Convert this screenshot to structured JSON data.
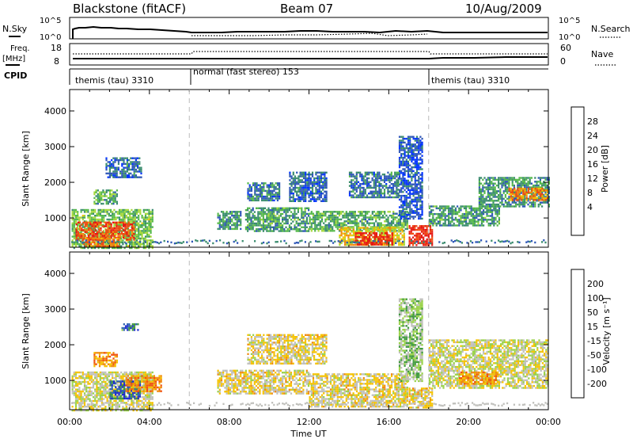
{
  "header": {
    "station": "Blackstone (fitACF)",
    "beam": "Beam 07",
    "date": "10/Aug/2009"
  },
  "status": {
    "nsky_label": "N.Sky",
    "nsearch_label": "N.Search",
    "nsky_ticks": [
      "10^5",
      "10^0"
    ],
    "right_ticks_top": [
      "10^5",
      "10^0"
    ],
    "freq_label": "Freq.",
    "freq_unit": "[MHz]",
    "freq_ticks": [
      "18",
      "8"
    ],
    "nave_label": "Nave",
    "nave_ticks": [
      "60",
      "0"
    ],
    "cpid_label": "CPID",
    "cpid_segments": [
      {
        "label": "themis (tau) 3310",
        "start_hour": 0,
        "end_hour": 6
      },
      {
        "label": "normal (fast stereo) 153",
        "start_hour": 6,
        "end_hour": 18
      },
      {
        "label": "themis (tau) 3310",
        "start_hour": 18,
        "end_hour": 24
      }
    ]
  },
  "chart_data": [
    {
      "type": "heatmap",
      "title": "Power",
      "ylabel": "Slant Range [km]",
      "xlabel": "Time UT",
      "xlim_hours": [
        0,
        24
      ],
      "ylim": [
        180,
        4600
      ],
      "xticks": [
        "00:00",
        "04:00",
        "08:00",
        "12:00",
        "16:00",
        "20:00",
        "00:00"
      ],
      "xtick_hours": [
        0,
        4,
        8,
        12,
        16,
        20,
        24
      ],
      "yticks": [
        1000,
        2000,
        3000,
        4000
      ],
      "colorbar": {
        "label": "Power [dB]",
        "ticks": [
          "28",
          "24",
          "20",
          "16",
          "12",
          "8",
          "4"
        ],
        "colors": [
          "#0033ff",
          "#2f57b7",
          "#3a8c6e",
          "#55b84a",
          "#a6d83a",
          "#f2c400",
          "#f08a10",
          "#ee4c12",
          "#e61812"
        ]
      },
      "regions": [
        {
          "t0": 0.1,
          "t1": 4.2,
          "r0": 180,
          "r1": 1250,
          "level": 0.42
        },
        {
          "t0": 0.3,
          "t1": 3.2,
          "r0": 380,
          "r1": 900,
          "level": 0.85
        },
        {
          "t0": 0.6,
          "t1": 2.5,
          "r0": 230,
          "r1": 450,
          "level": 0.75
        },
        {
          "t0": 1.2,
          "t1": 2.4,
          "r0": 1400,
          "r1": 1800,
          "level": 0.35
        },
        {
          "t0": 1.8,
          "t1": 3.6,
          "r0": 2150,
          "r1": 2700,
          "level": 0.2
        },
        {
          "t0": 7.4,
          "t1": 8.6,
          "r0": 700,
          "r1": 1200,
          "level": 0.3
        },
        {
          "t0": 8.8,
          "t1": 12.0,
          "r0": 650,
          "r1": 1300,
          "level": 0.32
        },
        {
          "t0": 8.9,
          "t1": 10.5,
          "r0": 1500,
          "r1": 2000,
          "level": 0.22
        },
        {
          "t0": 11.0,
          "t1": 12.9,
          "r0": 1500,
          "r1": 2300,
          "level": 0.2
        },
        {
          "t0": 12.0,
          "t1": 16.9,
          "r0": 650,
          "r1": 1200,
          "level": 0.35
        },
        {
          "t0": 13.5,
          "t1": 16.8,
          "r0": 250,
          "r1": 750,
          "level": 0.6
        },
        {
          "t0": 14.3,
          "t1": 16.2,
          "r0": 250,
          "r1": 600,
          "level": 0.95
        },
        {
          "t0": 17.0,
          "t1": 18.2,
          "r0": 250,
          "r1": 800,
          "level": 0.92
        },
        {
          "t0": 16.5,
          "t1": 17.7,
          "r0": 1000,
          "r1": 3300,
          "level": 0.15
        },
        {
          "t0": 14.0,
          "t1": 16.5,
          "r0": 1600,
          "r1": 2300,
          "level": 0.22
        },
        {
          "t0": 18.0,
          "t1": 21.5,
          "r0": 800,
          "r1": 1350,
          "level": 0.32
        },
        {
          "t0": 20.5,
          "t1": 24.0,
          "r0": 1350,
          "r1": 2150,
          "level": 0.3
        },
        {
          "t0": 22.0,
          "t1": 24.0,
          "r0": 1500,
          "r1": 1850,
          "level": 0.72
        }
      ]
    },
    {
      "type": "heatmap",
      "title": "Velocity",
      "ylabel": "Slant Range [km]",
      "xlabel": "Time UT",
      "xlim_hours": [
        0,
        24
      ],
      "ylim": [
        180,
        4600
      ],
      "xticks": [
        "00:00",
        "04:00",
        "08:00",
        "12:00",
        "16:00",
        "20:00",
        "00:00"
      ],
      "xtick_hours": [
        0,
        4,
        8,
        12,
        16,
        20,
        24
      ],
      "yticks": [
        1000,
        2000,
        3000,
        4000
      ],
      "colorbar": {
        "label": "Velocity [m s⁻¹]",
        "ticks": [
          "200",
          "100",
          "50",
          "15",
          "-15",
          "-50",
          "-100",
          "-200"
        ],
        "colors": [
          "#e01010",
          "#f05010",
          "#f08a10",
          "#f5c200",
          "#c0c0bc",
          "#9ad24a",
          "#3f9a3e",
          "#2f63b0",
          "#1e2ad0"
        ]
      },
      "regions": [
        {
          "t0": 0.1,
          "t1": 4.2,
          "r0": 180,
          "r1": 1250,
          "level": 0.5
        },
        {
          "t0": 2.0,
          "t1": 3.5,
          "r0": 500,
          "r1": 1000,
          "level": 0.85
        },
        {
          "t0": 2.8,
          "t1": 4.6,
          "r0": 700,
          "r1": 1150,
          "level": 0.25
        },
        {
          "t0": 1.2,
          "t1": 2.4,
          "r0": 1400,
          "r1": 1800,
          "level": 0.3
        },
        {
          "t0": 2.6,
          "t1": 3.4,
          "r0": 2400,
          "r1": 2600,
          "level": 0.8
        },
        {
          "t0": 7.4,
          "t1": 12.0,
          "r0": 650,
          "r1": 1300,
          "level": 0.45
        },
        {
          "t0": 8.9,
          "t1": 12.9,
          "r0": 1500,
          "r1": 2300,
          "level": 0.45
        },
        {
          "t0": 12.0,
          "t1": 16.9,
          "r0": 250,
          "r1": 1200,
          "level": 0.45
        },
        {
          "t0": 16.5,
          "t1": 17.7,
          "r0": 1000,
          "r1": 3300,
          "level": 0.6
        },
        {
          "t0": 17.0,
          "t1": 18.2,
          "r0": 250,
          "r1": 800,
          "level": 0.45
        },
        {
          "t0": 18.0,
          "t1": 24.0,
          "r0": 800,
          "r1": 2150,
          "level": 0.5
        },
        {
          "t0": 19.5,
          "t1": 21.5,
          "r0": 900,
          "r1": 1250,
          "level": 0.3
        }
      ]
    }
  ],
  "colors": {
    "frame": "#000000",
    "dashed_divider": "#bbbbbb"
  }
}
